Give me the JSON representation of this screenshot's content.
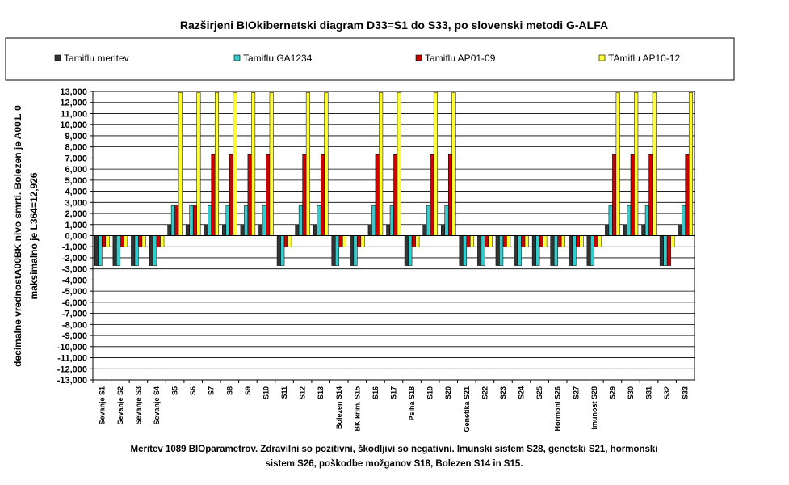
{
  "chart_data": {
    "type": "bar",
    "title": "Razširjeni BIOkibernetski diagram  D33=S1 do S33, po slovenski metodi G-ALFA",
    "ylabel_lines": [
      "decimalne vrednostA00BK nivo smrti. Bolezen je A001. 0",
      "maksimalno je L364=12,926"
    ],
    "caption_lines": [
      "Meritev 1089 BIOparametrov. Zdravilni so pozitivni, škodljivi so negativni. Imunski sistem S28, genetski S21, hormonski",
      "sistem S26, poškodbe možganov S18, Bolezen S14 in S15."
    ],
    "ylim": [
      -13000,
      13000
    ],
    "y_ticks": [
      "13,000",
      "12,000",
      "11,000",
      "10,000",
      "9,000",
      "8,000",
      "7,000",
      "6,000",
      "5,000",
      "4,000",
      "3,000",
      "2,000",
      "1,000",
      "0,000",
      "-1,000",
      "-2,000",
      "-3,000",
      "-4,000",
      "-5,000",
      "-6,000",
      "-7,000",
      "-8,000",
      "-9,000",
      "-10,000",
      "-11,000",
      "-12,000",
      "-13,000"
    ],
    "grid": true,
    "legend_position": "top",
    "categories": [
      "Sevanje S1",
      "Sevanje S2",
      "Sevanje S3",
      "Sevanje S4",
      "S5",
      "S6",
      "S7",
      "S8",
      "S9",
      "S10",
      "S11",
      "S12",
      "S13",
      "Bolezen S14",
      "BK krim. S15",
      "S16",
      "S17",
      "Psiha S18",
      "S19",
      "S20",
      "Genetika S21",
      "S22",
      "S23",
      "S24",
      "S25",
      "Hormoni S26",
      "S27",
      "Imunost S28",
      "S29",
      "S30",
      "S31",
      "S32",
      "S33"
    ],
    "series": [
      {
        "name": "Tamiflu meritev",
        "color": "#333333",
        "values": [
          -2700,
          -2700,
          -2700,
          -2700,
          1000,
          1000,
          1000,
          1000,
          1000,
          1000,
          -2700,
          1000,
          1000,
          -2700,
          -2700,
          1000,
          1000,
          -2700,
          1000,
          1000,
          -2700,
          -2700,
          -2700,
          -2700,
          -2700,
          -2700,
          -2700,
          -2700,
          1000,
          1000,
          1000,
          -2700,
          1000
        ]
      },
      {
        "name": "Tamiflu GA1234",
        "color": "#33CCCC",
        "values": [
          -2700,
          -2700,
          -2700,
          -2700,
          2700,
          2700,
          2700,
          2700,
          2700,
          2700,
          -2700,
          2700,
          2700,
          -2700,
          -2700,
          2700,
          2700,
          -2700,
          2700,
          2700,
          -2700,
          -2700,
          -2700,
          -2700,
          -2700,
          -2700,
          -2700,
          -2700,
          2700,
          2700,
          2700,
          -2700,
          2700
        ]
      },
      {
        "name": "Tamiflu AP01-09",
        "color": "#CC0000",
        "values": [
          -1000,
          -1000,
          -1000,
          -1000,
          2700,
          2700,
          7300,
          7300,
          7300,
          7300,
          -1000,
          7300,
          7300,
          -1000,
          -1000,
          7300,
          7300,
          -1000,
          7300,
          7300,
          -1000,
          -1000,
          -1000,
          -1000,
          -1000,
          -1000,
          -1000,
          -1000,
          7300,
          7300,
          7300,
          -2700,
          7300
        ]
      },
      {
        "name": "TAmiflu AP10-12",
        "color": "#FFFF33",
        "values": [
          -1000,
          -1000,
          -1000,
          -1000,
          12900,
          12900,
          12900,
          12900,
          12900,
          12900,
          -1000,
          12900,
          12900,
          -1000,
          -1000,
          12900,
          12900,
          -1000,
          12900,
          12900,
          -1000,
          -1000,
          -1000,
          -1000,
          -1000,
          -1000,
          -1000,
          -1000,
          12900,
          12900,
          12900,
          -1000,
          12900
        ]
      }
    ]
  }
}
